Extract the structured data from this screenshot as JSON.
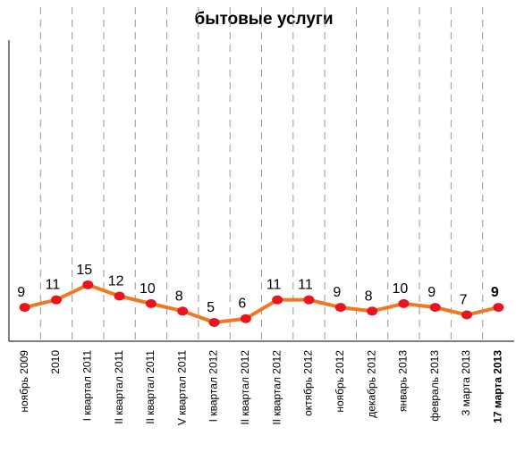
{
  "chart_data": {
    "type": "line",
    "title": "бытовые услуги",
    "categories": [
      "ноябрь 2009",
      "2010",
      "I квартал 2011",
      "II квартал 2011",
      "II квартал 2011",
      "V квартал 2011",
      "I квартал 2012",
      "II квартал 2012",
      "II квартал 2012",
      "октябрь 2012",
      "ноябрь 2012",
      "декабрь 2012",
      "январь 2013",
      "февраль 2013",
      "3 марта 2013",
      "17 марта 2013"
    ],
    "series": [
      {
        "name": "бытовые услуги",
        "color": "#f07820",
        "marker_color": "#e8141e",
        "values": [
          9,
          11,
          15,
          12,
          10,
          8,
          5,
          6,
          11,
          11,
          9,
          8,
          10,
          9,
          7,
          9
        ]
      }
    ],
    "ylim": [
      0,
      80
    ],
    "grid": true
  }
}
